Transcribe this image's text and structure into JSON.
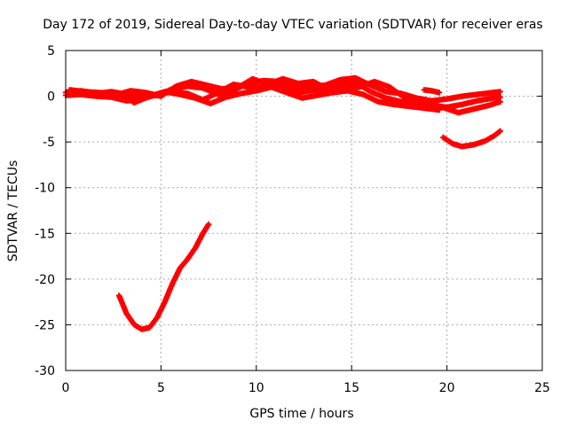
{
  "chart_data": {
    "type": "scatter",
    "title": "Day 172 of 2019, Sidereal Day-to-day VTEC variation (SDTVAR) for receiver eras",
    "xlabel": "GPS time / hours",
    "ylabel": "SDTVAR / TECUs",
    "xlim": [
      0,
      25
    ],
    "ylim": [
      -30,
      5
    ],
    "xticks": [
      0,
      5,
      10,
      15,
      20,
      25
    ],
    "yticks": [
      -30,
      -25,
      -20,
      -15,
      -10,
      -5,
      0,
      5
    ],
    "xtick_labels": [
      "0",
      "5",
      "10",
      "15",
      "20",
      "25"
    ],
    "ytick_labels": [
      "-30",
      "-25",
      "-20",
      "-15",
      "-10",
      "-5",
      "0",
      "5"
    ],
    "grid": true,
    "marker": "plus",
    "color": "#ff0000",
    "series": [
      {
        "name": "arc-upper-1",
        "points": [
          [
            0,
            0.4
          ],
          [
            0.8,
            0.6
          ],
          [
            1.6,
            0.3
          ],
          [
            2.4,
            0.5
          ],
          [
            3.2,
            0.2
          ],
          [
            4.0,
            -0.1
          ],
          [
            4.8,
            0.1
          ],
          [
            5.6,
            0.8
          ],
          [
            6.4,
            1.1
          ],
          [
            7.2,
            0.9
          ],
          [
            8.0,
            0.2
          ],
          [
            8.8,
            0.6
          ],
          [
            9.6,
            1.5
          ],
          [
            10.4,
            1.7
          ],
          [
            11.2,
            1.6
          ],
          [
            12.0,
            0.9
          ],
          [
            12.8,
            1.1
          ],
          [
            13.6,
            1.2
          ],
          [
            14.4,
            1.8
          ],
          [
            15.2,
            2.0
          ],
          [
            16.0,
            1.2
          ],
          [
            16.8,
            0.5
          ],
          [
            17.6,
            0.3
          ],
          [
            18.4,
            -0.2
          ],
          [
            19.2,
            -0.5
          ],
          [
            20.0,
            -0.3
          ],
          [
            20.8,
            0.0
          ],
          [
            21.6,
            0.2
          ],
          [
            22.4,
            0.4
          ],
          [
            22.8,
            0.5
          ]
        ]
      },
      {
        "name": "arc-upper-2",
        "points": [
          [
            0,
            0.1
          ],
          [
            0.8,
            0.2
          ],
          [
            1.6,
            0.0
          ],
          [
            2.4,
            -0.1
          ],
          [
            3.2,
            -0.5
          ],
          [
            4.0,
            -0.3
          ],
          [
            4.8,
            0.2
          ],
          [
            5.6,
            0.5
          ],
          [
            6.4,
            0.3
          ],
          [
            7.2,
            -0.4
          ],
          [
            8.0,
            0.4
          ],
          [
            8.8,
            1.3
          ],
          [
            9.6,
            1.0
          ],
          [
            10.4,
            1.0
          ],
          [
            11.2,
            1.3
          ],
          [
            12.0,
            0.3
          ],
          [
            12.8,
            0.6
          ],
          [
            13.6,
            0.8
          ],
          [
            14.4,
            1.4
          ],
          [
            15.2,
            1.5
          ],
          [
            16.0,
            0.5
          ],
          [
            16.8,
            -0.2
          ],
          [
            17.6,
            -0.6
          ],
          [
            18.4,
            -0.9
          ],
          [
            19.2,
            -1.0
          ],
          [
            20.0,
            -1.2
          ],
          [
            20.8,
            -0.9
          ],
          [
            21.6,
            -0.5
          ],
          [
            22.4,
            -0.2
          ],
          [
            22.8,
            -0.1
          ]
        ]
      },
      {
        "name": "arc-upper-3",
        "points": [
          [
            0.2,
            0.7
          ],
          [
            1.0,
            0.5
          ],
          [
            1.8,
            0.4
          ],
          [
            2.6,
            0.1
          ],
          [
            3.4,
            0.6
          ],
          [
            4.2,
            0.4
          ],
          [
            5.0,
            0.0
          ],
          [
            5.8,
            1.1
          ],
          [
            6.6,
            1.6
          ],
          [
            7.4,
            1.2
          ],
          [
            8.2,
            0.8
          ],
          [
            9.0,
            0.9
          ],
          [
            9.8,
            1.9
          ],
          [
            10.6,
            1.3
          ],
          [
            11.4,
            1.9
          ],
          [
            12.2,
            1.4
          ],
          [
            13.0,
            1.6
          ],
          [
            13.8,
            0.7
          ],
          [
            14.6,
            1.0
          ],
          [
            15.4,
            1.0
          ],
          [
            16.2,
            1.6
          ],
          [
            17.0,
            1.0
          ],
          [
            17.8,
            -0.2
          ],
          [
            18.6,
            -0.6
          ],
          [
            19.2,
            -0.8
          ],
          [
            20.6,
            -1.8
          ],
          [
            21.4,
            -1.4
          ],
          [
            22.2,
            -1.0
          ],
          [
            22.8,
            -0.6
          ]
        ]
      },
      {
        "name": "arc-upper-4",
        "points": [
          [
            0.4,
            0.3
          ],
          [
            1.2,
            0.1
          ],
          [
            2.0,
            0.2
          ],
          [
            2.8,
            0.3
          ],
          [
            3.6,
            -0.7
          ],
          [
            4.4,
            0.0
          ],
          [
            5.2,
            0.5
          ],
          [
            6.0,
            0.2
          ],
          [
            6.8,
            -0.2
          ],
          [
            7.6,
            -0.8
          ],
          [
            8.4,
            -0.1
          ],
          [
            9.2,
            0.3
          ],
          [
            10.0,
            0.6
          ],
          [
            10.8,
            1.0
          ],
          [
            11.6,
            0.4
          ],
          [
            12.4,
            -0.2
          ],
          [
            13.2,
            0.1
          ],
          [
            14.0,
            0.4
          ],
          [
            14.8,
            0.6
          ],
          [
            15.6,
            0.2
          ],
          [
            16.4,
            -0.6
          ],
          [
            17.2,
            -0.9
          ],
          [
            18.0,
            -1.1
          ],
          [
            18.8,
            -1.3
          ],
          [
            19.6,
            -1.5
          ]
        ]
      },
      {
        "name": "arc-short",
        "points": [
          [
            18.8,
            0.7
          ],
          [
            19.2,
            0.6
          ],
          [
            19.6,
            0.4
          ]
        ]
      },
      {
        "name": "arc-right-lower",
        "points": [
          [
            19.8,
            -4.5
          ],
          [
            20.3,
            -5.2
          ],
          [
            20.8,
            -5.5
          ],
          [
            21.4,
            -5.3
          ],
          [
            22.0,
            -4.9
          ],
          [
            22.5,
            -4.3
          ],
          [
            22.8,
            -3.8
          ]
        ]
      },
      {
        "name": "arc-dip",
        "points": [
          [
            2.8,
            -21.8
          ],
          [
            3.2,
            -23.8
          ],
          [
            3.6,
            -25.0
          ],
          [
            4.0,
            -25.5
          ],
          [
            4.4,
            -25.3
          ],
          [
            4.8,
            -24.2
          ],
          [
            5.2,
            -22.5
          ],
          [
            5.6,
            -20.5
          ],
          [
            6.0,
            -18.8
          ],
          [
            6.4,
            -17.8
          ],
          [
            6.8,
            -16.6
          ],
          [
            7.2,
            -15.0
          ],
          [
            7.5,
            -14.0
          ]
        ]
      }
    ]
  }
}
